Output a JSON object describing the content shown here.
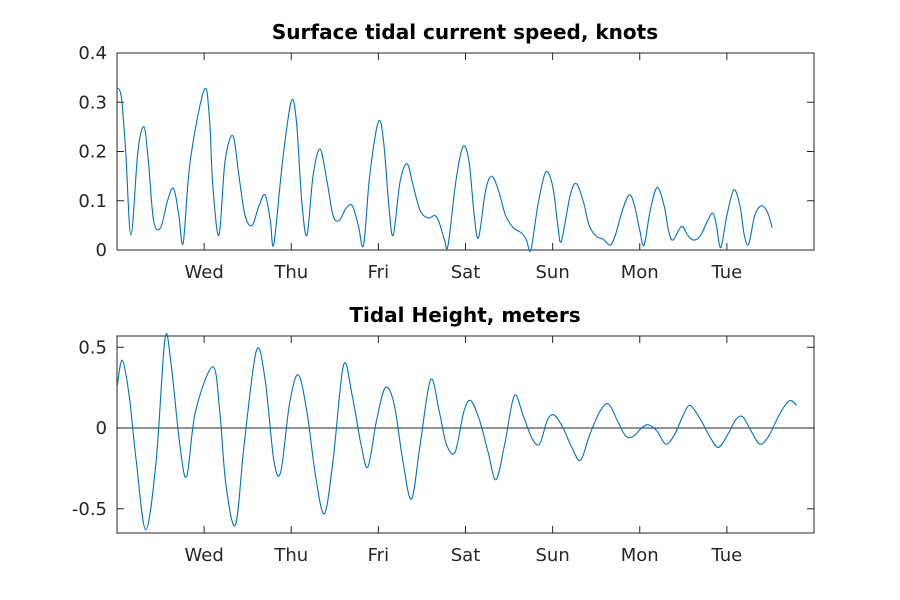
{
  "chart_data": [
    {
      "type": "line",
      "title": "Surface tidal current speed, knots",
      "xlabel": "",
      "ylabel": "",
      "x_unit": "days",
      "xlim": [
        0,
        8
      ],
      "ylim": [
        0,
        0.4
      ],
      "yticks": [
        0,
        0.1,
        0.2,
        0.3,
        0.4
      ],
      "ytick_labels": [
        "0",
        "0.1",
        "0.2",
        "0.3",
        "0.4"
      ],
      "xticks": [
        1,
        2,
        3,
        4,
        5,
        6,
        7
      ],
      "xtick_labels": [
        "Wed",
        "Thu",
        "Fri",
        "Sat",
        "Sun",
        "Mon",
        "Tue"
      ],
      "grid": false,
      "series": [
        {
          "color": "#0072BD",
          "points": [
            [
              0.0,
              0.33
            ],
            [
              0.05,
              0.31
            ],
            [
              0.1,
              0.2
            ],
            [
              0.16,
              0.03
            ],
            [
              0.24,
              0.2
            ],
            [
              0.31,
              0.25
            ],
            [
              0.36,
              0.18
            ],
            [
              0.42,
              0.06
            ],
            [
              0.5,
              0.045
            ],
            [
              0.58,
              0.1
            ],
            [
              0.65,
              0.125
            ],
            [
              0.71,
              0.07
            ],
            [
              0.76,
              0.015
            ],
            [
              0.84,
              0.18
            ],
            [
              1.0,
              0.325
            ],
            [
              1.06,
              0.27
            ],
            [
              1.1,
              0.13
            ],
            [
              1.17,
              0.03
            ],
            [
              1.24,
              0.18
            ],
            [
              1.33,
              0.232
            ],
            [
              1.4,
              0.15
            ],
            [
              1.47,
              0.07
            ],
            [
              1.55,
              0.05
            ],
            [
              1.63,
              0.09
            ],
            [
              1.7,
              0.112
            ],
            [
              1.76,
              0.06
            ],
            [
              1.8,
              0.012
            ],
            [
              1.9,
              0.18
            ],
            [
              2.0,
              0.302
            ],
            [
              2.06,
              0.26
            ],
            [
              2.12,
              0.1
            ],
            [
              2.18,
              0.03
            ],
            [
              2.25,
              0.15
            ],
            [
              2.33,
              0.205
            ],
            [
              2.41,
              0.14
            ],
            [
              2.48,
              0.07
            ],
            [
              2.55,
              0.06
            ],
            [
              2.63,
              0.085
            ],
            [
              2.7,
              0.09
            ],
            [
              2.77,
              0.05
            ],
            [
              2.83,
              0.01
            ],
            [
              2.9,
              0.15
            ],
            [
              3.0,
              0.26
            ],
            [
              3.06,
              0.22
            ],
            [
              3.12,
              0.09
            ],
            [
              3.17,
              0.03
            ],
            [
              3.25,
              0.14
            ],
            [
              3.33,
              0.175
            ],
            [
              3.4,
              0.13
            ],
            [
              3.48,
              0.08
            ],
            [
              3.57,
              0.065
            ],
            [
              3.65,
              0.07
            ],
            [
              3.7,
              0.055
            ],
            [
              3.76,
              0.02
            ],
            [
              3.8,
              0.01
            ],
            [
              3.89,
              0.14
            ],
            [
              3.97,
              0.21
            ],
            [
              4.04,
              0.18
            ],
            [
              4.1,
              0.07
            ],
            [
              4.15,
              0.025
            ],
            [
              4.23,
              0.12
            ],
            [
              4.3,
              0.15
            ],
            [
              4.38,
              0.12
            ],
            [
              4.46,
              0.07
            ],
            [
              4.55,
              0.045
            ],
            [
              4.64,
              0.035
            ],
            [
              4.7,
              0.02
            ],
            [
              4.75,
              0.0
            ],
            [
              4.83,
              0.09
            ],
            [
              4.92,
              0.158
            ],
            [
              5.0,
              0.13
            ],
            [
              5.06,
              0.05
            ],
            [
              5.1,
              0.018
            ],
            [
              5.2,
              0.11
            ],
            [
              5.27,
              0.135
            ],
            [
              5.35,
              0.1
            ],
            [
              5.42,
              0.05
            ],
            [
              5.5,
              0.028
            ],
            [
              5.58,
              0.022
            ],
            [
              5.66,
              0.01
            ],
            [
              5.72,
              0.03
            ],
            [
              5.8,
              0.08
            ],
            [
              5.88,
              0.112
            ],
            [
              5.94,
              0.09
            ],
            [
              6.0,
              0.04
            ],
            [
              6.05,
              0.01
            ],
            [
              6.12,
              0.08
            ],
            [
              6.2,
              0.127
            ],
            [
              6.28,
              0.09
            ],
            [
              6.33,
              0.04
            ],
            [
              6.38,
              0.02
            ],
            [
              6.48,
              0.048
            ],
            [
              6.55,
              0.03
            ],
            [
              6.62,
              0.02
            ],
            [
              6.7,
              0.03
            ],
            [
              6.78,
              0.06
            ],
            [
              6.84,
              0.075
            ],
            [
              6.88,
              0.05
            ],
            [
              6.93,
              0.005
            ],
            [
              7.0,
              0.07
            ],
            [
              7.08,
              0.122
            ],
            [
              7.15,
              0.09
            ],
            [
              7.2,
              0.03
            ],
            [
              7.25,
              0.012
            ],
            [
              7.32,
              0.07
            ],
            [
              7.4,
              0.09
            ],
            [
              7.47,
              0.075
            ],
            [
              7.52,
              0.045
            ]
          ]
        }
      ]
    },
    {
      "type": "line",
      "title": "Tidal Height, meters",
      "xlabel": "",
      "ylabel": "",
      "x_unit": "days",
      "xlim": [
        0,
        8
      ],
      "ylim": [
        -0.65,
        0.57
      ],
      "yticks": [
        -0.5,
        0,
        0.5
      ],
      "ytick_labels": [
        "-0.5",
        "0",
        "0.5"
      ],
      "xticks": [
        1,
        2,
        3,
        4,
        5,
        6,
        7
      ],
      "xtick_labels": [
        "Wed",
        "Thu",
        "Fri",
        "Sat",
        "Sun",
        "Mon",
        "Tue"
      ],
      "zero_line": true,
      "grid": false,
      "series": [
        {
          "color": "#0072BD",
          "points": [
            [
              0.0,
              0.25
            ],
            [
              0.06,
              0.42
            ],
            [
              0.14,
              0.2
            ],
            [
              0.22,
              -0.2
            ],
            [
              0.33,
              -0.63
            ],
            [
              0.45,
              -0.2
            ],
            [
              0.55,
              0.55
            ],
            [
              0.62,
              0.4
            ],
            [
              0.72,
              -0.1
            ],
            [
              0.8,
              -0.3
            ],
            [
              0.9,
              0.1
            ],
            [
              1.1,
              0.38
            ],
            [
              1.18,
              0.1
            ],
            [
              1.25,
              -0.35
            ],
            [
              1.36,
              -0.6
            ],
            [
              1.46,
              -0.1
            ],
            [
              1.6,
              0.48
            ],
            [
              1.7,
              0.3
            ],
            [
              1.8,
              -0.2
            ],
            [
              1.88,
              -0.27
            ],
            [
              1.98,
              0.15
            ],
            [
              2.08,
              0.33
            ],
            [
              2.18,
              0.1
            ],
            [
              2.28,
              -0.3
            ],
            [
              2.38,
              -0.53
            ],
            [
              2.48,
              -0.2
            ],
            [
              2.6,
              0.39
            ],
            [
              2.7,
              0.2
            ],
            [
              2.8,
              -0.1
            ],
            [
              2.88,
              -0.24
            ],
            [
              2.98,
              0.05
            ],
            [
              3.08,
              0.25
            ],
            [
              3.18,
              0.15
            ],
            [
              3.28,
              -0.2
            ],
            [
              3.38,
              -0.44
            ],
            [
              3.48,
              -0.1
            ],
            [
              3.6,
              0.3
            ],
            [
              3.7,
              0.1
            ],
            [
              3.78,
              -0.1
            ],
            [
              3.88,
              -0.15
            ],
            [
              3.98,
              0.1
            ],
            [
              4.06,
              0.17
            ],
            [
              4.16,
              0.05
            ],
            [
              4.26,
              -0.15
            ],
            [
              4.35,
              -0.32
            ],
            [
              4.45,
              -0.1
            ],
            [
              4.56,
              0.2
            ],
            [
              4.66,
              0.08
            ],
            [
              4.76,
              -0.06
            ],
            [
              4.85,
              -0.1
            ],
            [
              4.94,
              0.05
            ],
            [
              5.02,
              0.08
            ],
            [
              5.12,
              0.0
            ],
            [
              5.22,
              -0.12
            ],
            [
              5.32,
              -0.2
            ],
            [
              5.42,
              -0.05
            ],
            [
              5.54,
              0.1
            ],
            [
              5.64,
              0.15
            ],
            [
              5.74,
              0.05
            ],
            [
              5.84,
              -0.05
            ],
            [
              5.93,
              -0.05
            ],
            [
              6.02,
              0.0
            ],
            [
              6.1,
              0.02
            ],
            [
              6.2,
              -0.02
            ],
            [
              6.3,
              -0.1
            ],
            [
              6.4,
              -0.04
            ],
            [
              6.5,
              0.08
            ],
            [
              6.58,
              0.14
            ],
            [
              6.7,
              0.05
            ],
            [
              6.8,
              -0.05
            ],
            [
              6.9,
              -0.12
            ],
            [
              7.0,
              -0.05
            ],
            [
              7.1,
              0.05
            ],
            [
              7.18,
              0.07
            ],
            [
              7.28,
              -0.02
            ],
            [
              7.38,
              -0.1
            ],
            [
              7.48,
              -0.05
            ],
            [
              7.58,
              0.06
            ],
            [
              7.68,
              0.15
            ],
            [
              7.74,
              0.17
            ],
            [
              7.8,
              0.14
            ]
          ]
        }
      ]
    }
  ]
}
